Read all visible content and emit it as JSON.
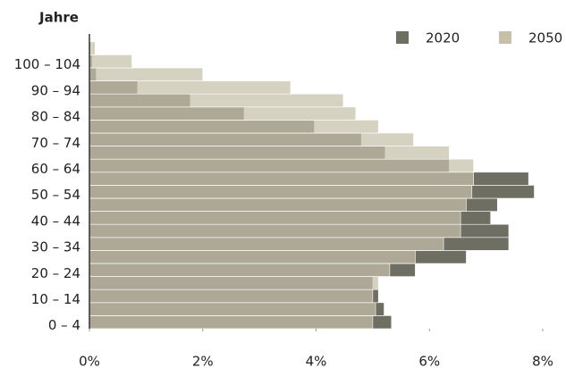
{
  "chart_data": {
    "type": "bar",
    "orientation": "horizontal",
    "y_axis_label": "Jahre",
    "categories": [
      "0 – 4",
      null,
      "10 – 14",
      null,
      "20 – 24",
      null,
      "30 – 34",
      null,
      "40 – 44",
      null,
      "50 – 54",
      null,
      "60 – 64",
      null,
      "70 – 74",
      null,
      "80 – 84",
      null,
      "90 – 94",
      null,
      "100 – 104",
      null
    ],
    "series": [
      {
        "name": "2020",
        "color": "#6f6e63",
        "values": [
          5.33,
          5.2,
          5.1,
          5.0,
          5.75,
          6.65,
          7.4,
          7.4,
          7.08,
          7.2,
          7.85,
          7.75,
          6.35,
          5.22,
          4.8,
          3.97,
          2.73,
          1.78,
          0.85,
          0.12,
          0.05,
          0.02
        ]
      },
      {
        "name": "2050",
        "color": "#c6c0ab",
        "values": [
          5.0,
          5.05,
          5.0,
          5.1,
          5.3,
          5.75,
          6.25,
          6.55,
          6.55,
          6.65,
          6.75,
          6.78,
          6.78,
          6.35,
          5.72,
          5.1,
          4.7,
          4.48,
          3.55,
          2.0,
          0.75,
          0.1
        ]
      }
    ],
    "xlim": [
      0,
      8
    ],
    "xticks": [
      {
        "value": 0,
        "label": "0%"
      },
      {
        "value": 2,
        "label": "2%"
      },
      {
        "value": 4,
        "label": "4%"
      },
      {
        "value": 6,
        "label": "6%"
      },
      {
        "value": 8,
        "label": "8%"
      }
    ],
    "legend": "top-right"
  }
}
